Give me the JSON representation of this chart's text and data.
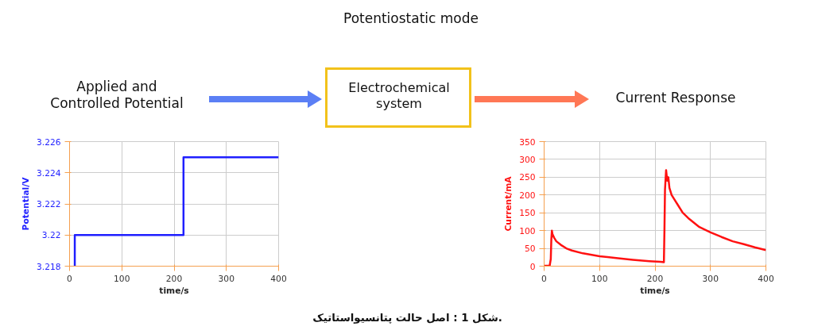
{
  "chart_data": [
    {
      "type": "other",
      "title": "Potentiostatic mode",
      "annotations": [
        "Applied and\nControlled Potential",
        "Electrochemical\nsystem",
        "Current Response",
        "شکل 1 : اصل حالت پتانسیواستاتیک."
      ]
    },
    {
      "type": "line",
      "xlabel": "time/s",
      "ylabel": "Potential/V",
      "x": [
        10,
        10,
        218,
        218,
        400
      ],
      "series": [
        {
          "color": "#1f1fff",
          "values": [
            3.218,
            3.22,
            3.22,
            3.225,
            3.225
          ]
        }
      ],
      "xlim": [
        0,
        400
      ],
      "xticks": [
        0,
        100,
        200,
        300,
        400
      ],
      "ylim": [
        3.218,
        3.226
      ],
      "yticks": [
        3.218,
        3.22,
        3.222,
        3.224,
        3.226
      ],
      "grid": true
    },
    {
      "type": "line",
      "xlabel": "time/s",
      "ylabel": "Current/mA",
      "x": [
        0,
        10,
        12,
        13,
        14,
        15,
        18,
        22,
        30,
        40,
        50,
        70,
        100,
        130,
        160,
        190,
        210,
        216,
        217,
        218,
        220,
        222,
        224,
        226,
        230,
        240,
        250,
        260,
        280,
        300,
        320,
        340,
        360,
        380,
        400
      ],
      "series": [
        {
          "color": "#ff1111",
          "values": [
            1,
            1,
            20,
            75,
            100,
            90,
            80,
            70,
            60,
            50,
            44,
            36,
            28,
            23,
            18,
            14,
            12,
            11,
            100,
            215,
            270,
            240,
            250,
            220,
            200,
            175,
            150,
            135,
            110,
            95,
            82,
            70,
            62,
            53,
            45
          ]
        }
      ],
      "xlim": [
        0,
        400
      ],
      "xticks": [
        0,
        100,
        200,
        300,
        400
      ],
      "ylim": [
        0,
        350
      ],
      "yticks": [
        0,
        50,
        100,
        150,
        200,
        250,
        300,
        350
      ],
      "grid": true
    }
  ]
}
